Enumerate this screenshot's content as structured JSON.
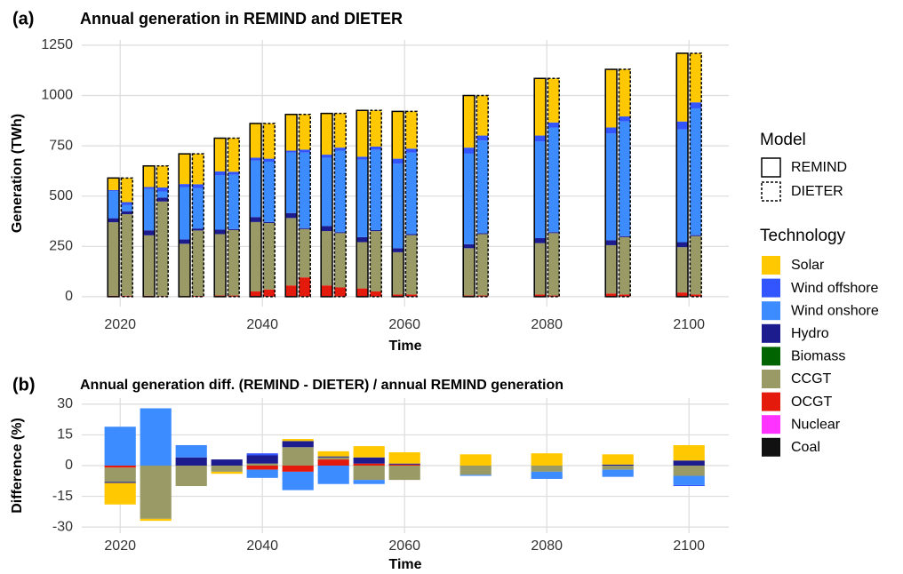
{
  "chart_data": [
    {
      "type": "bar",
      "panel_label": "(a)",
      "title": "Annual generation in REMIND and DIETER",
      "xlabel": "Time",
      "ylabel": "Generation (TWh)",
      "x": [
        2020,
        2025,
        2030,
        2035,
        2040,
        2045,
        2050,
        2055,
        2060,
        2070,
        2080,
        2090,
        2100
      ],
      "xlim": [
        2014.6,
        2105.6
      ],
      "xticks": [
        2020,
        2040,
        2060,
        2080,
        2100
      ],
      "ylim": [
        -49,
        1276
      ],
      "yticks": [
        0,
        250,
        500,
        750,
        1000,
        1250
      ],
      "grid": true,
      "model_legend_title": "Model",
      "models": [
        "REMIND",
        "DIETER"
      ],
      "model_line_styles": [
        "solid",
        "dashed"
      ],
      "technology_legend_title": "Technology",
      "series": [
        {
          "name": "Solar",
          "color": "#ffc800",
          "values": [
            [
              60,
              105,
              150,
              165,
              170,
              180,
              205,
              230,
              235,
              259,
              284,
              289,
              339
            ],
            [
              120,
              107,
              151,
              167,
              175,
              175,
              170,
              180,
              185,
              199,
              219,
              234,
              244
            ]
          ]
        },
        {
          "name": "Wind offshore",
          "color": "#3355ff",
          "values": [
            [
              5,
              10,
              15,
              20,
              15,
              10,
              15,
              15,
              25,
              30,
              30,
              30,
              40
            ],
            [
              15,
              20,
              20,
              15,
              15,
              15,
              15,
              15,
              20,
              25,
              25,
              25,
              30
            ]
          ]
        },
        {
          "name": "Wind onshore",
          "color": "#3d8cff",
          "values": [
            [
              135,
              205,
              260,
              270,
              280,
              300,
              340,
              385,
              420,
              450,
              480,
              530,
              560
            ],
            [
              30,
              30,
              200,
              270,
              300,
              375,
              405,
              400,
              405,
              460,
              520,
              570,
              630
            ]
          ]
        },
        {
          "name": "Hydro",
          "color": "#1c1c8f",
          "values": [
            [
              20,
              25,
              22,
              22,
              25,
              25,
              25,
              25,
              20,
              20,
              25,
              25,
              25
            ],
            [
              15,
              20,
              10,
              5,
              5,
              5,
              5,
              5,
              5,
              5,
              5,
              5,
              5
            ]
          ]
        },
        {
          "name": "Biomass",
          "color": "#006400",
          "values": [
            [
              0,
              0,
              0,
              0,
              0,
              0,
              0,
              0,
              0,
              0,
              0,
              0,
              0
            ],
            [
              0,
              0,
              0,
              0,
              0,
              0,
              0,
              0,
              0,
              0,
              0,
              0,
              0
            ]
          ]
        },
        {
          "name": "CCGT",
          "color": "#9a9a66",
          "values": [
            [
              365,
              300,
              260,
              305,
              345,
              335,
              270,
              230,
              210,
              235,
              255,
              240,
              225
            ],
            [
              405,
              470,
              325,
              325,
              330,
              240,
              270,
              300,
              295,
              305,
              310,
              285,
              290
            ]
          ]
        },
        {
          "name": "OCGT",
          "color": "#e31a0c",
          "values": [
            [
              3,
              3,
              2,
              5,
              25,
              55,
              55,
              40,
              10,
              5,
              10,
              15,
              20
            ],
            [
              4,
              2,
              3,
              5,
              35,
              95,
              45,
              25,
              10,
              5,
              5,
              10,
              10
            ]
          ]
        },
        {
          "name": "Nuclear",
          "color": "#ff33ff",
          "values": [
            [
              0,
              0,
              0,
              0,
              0,
              0,
              0,
              0,
              0,
              0,
              0,
              0,
              0
            ],
            [
              0,
              0,
              0,
              0,
              0,
              0,
              0,
              0,
              0,
              0,
              0,
              0,
              0
            ]
          ]
        },
        {
          "name": "Coal",
          "color": "#111111",
          "values": [
            [
              2,
              2,
              1,
              1,
              1,
              1,
              1,
              1,
              1,
              1,
              1,
              1,
              1
            ],
            [
              1,
              1,
              1,
              1,
              1,
              1,
              1,
              1,
              1,
              1,
              1,
              1,
              1
            ]
          ]
        }
      ]
    },
    {
      "type": "diverging_bar",
      "panel_label": "(b)",
      "title": "Annual generation diff. (REMIND - DIETER) / annual REMIND generation",
      "xlabel": "Time",
      "ylabel": "Difference (%)",
      "x": [
        2020,
        2025,
        2030,
        2035,
        2040,
        2045,
        2050,
        2055,
        2060,
        2070,
        2080,
        2090,
        2100
      ],
      "xlim": [
        2014.6,
        2105.6
      ],
      "xticks": [
        2020,
        2040,
        2060,
        2080,
        2100
      ],
      "ylim": [
        -33,
        33
      ],
      "yticks": [
        -30,
        -15,
        0,
        15,
        30
      ],
      "grid": true,
      "series": [
        {
          "values": [
            -10.5,
            -1,
            0,
            -1,
            0,
            1,
            2.5,
            5.5,
            5.5,
            5.5,
            6,
            5,
            7.5
          ]
        },
        {
          "values": [
            0,
            0,
            0,
            0,
            1,
            0,
            0,
            0,
            0,
            0,
            0,
            0,
            -0.5
          ]
        },
        {
          "values": [
            19,
            28,
            6,
            0,
            -4,
            -9,
            -9,
            -2,
            0,
            -0.5,
            -3.5,
            -3.5,
            -4.5
          ]
        },
        {
          "values": [
            -0.5,
            0,
            4,
            3,
            4,
            3,
            0.5,
            3,
            0.5,
            0,
            0,
            0.5,
            2.5
          ]
        },
        {
          "values": [
            0,
            0,
            0,
            0,
            0,
            0,
            0,
            0,
            0,
            0,
            0,
            0,
            0
          ]
        },
        {
          "values": [
            -7,
            -26,
            -10,
            -3,
            1,
            9,
            1,
            -7,
            -7,
            -4.5,
            -3,
            -2,
            -5
          ]
        },
        {
          "values": [
            -1,
            0,
            0,
            0,
            -2,
            -3,
            3,
            1,
            0.5,
            0,
            0,
            0,
            0
          ]
        },
        {
          "values": [
            0,
            0,
            0,
            0,
            0,
            0,
            0,
            0,
            0,
            0,
            0,
            0,
            0
          ]
        },
        {
          "values": [
            0,
            0,
            0,
            0,
            0,
            0,
            0,
            0,
            0,
            0,
            0,
            0,
            0
          ]
        }
      ]
    }
  ]
}
